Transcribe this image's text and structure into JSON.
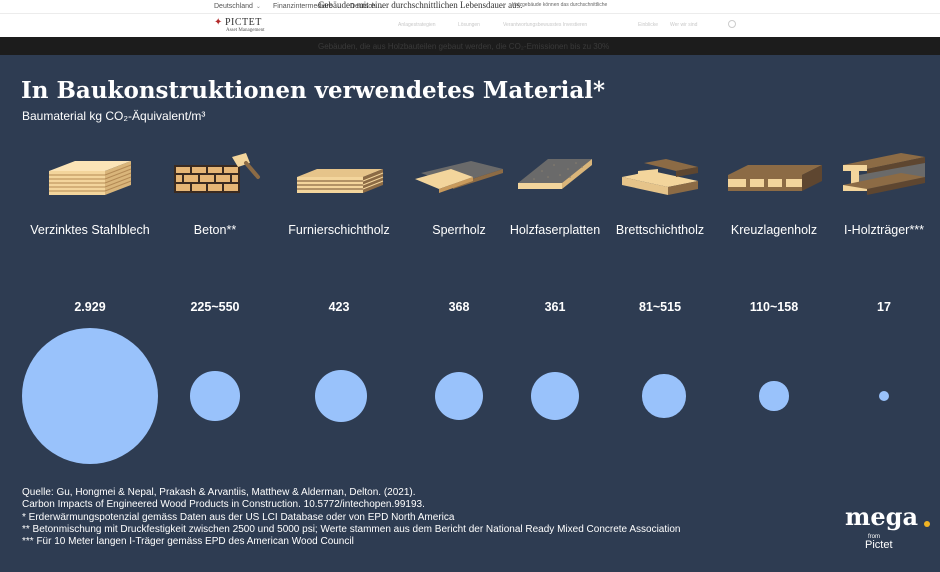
{
  "topbar": {
    "region": "Deutschland",
    "audience": "Finanzintermediäre",
    "language": "Deutsch",
    "overlay_sentence": "Gebäuden mit einer durchschnittlichen Lebensdauer aus.",
    "overlay_small": "Holzgebäude können das durchschnittliche"
  },
  "site": {
    "logo_name": "PICTET",
    "logo_sub": "Asset Management",
    "nav_items": [
      "Anlagestrategien",
      "Lösungen",
      "Verantwortungsbewusstes Investieren",
      "Einblicke",
      "Wer wir sind"
    ],
    "banner_text": "Gebäuden, die aus Holzbauteilen gebaut werden, die CO₂-Emissionen bis zu 30%"
  },
  "infographic": {
    "title": "In Baukonstruktionen verwendetes Material*",
    "subtitle": "Baumaterial kg CO₂-Äquivalent/m³",
    "sources": [
      "Quelle: Gu, Hongmei & Nepal, Prakash & Arvantiis, Matthew & Alderman, Delton. (2021).",
      "Carbon Impacts of Engineered Wood Products in Construction. 10.5772/intechopen.99193.",
      "* Erderwärmungspotenzial gemäss Daten aus der US LCI Database oder von EPD North America",
      "** Betonmischung mit Druckfestigkeit zwischen 2500 und 5000 psi; Werte stammen aus dem Bericht der National Ready Mixed Concrete Association",
      "*** Für 10 Meter langen I-Träger gemäss EPD des American Wood Council"
    ],
    "brand": {
      "name": "mega",
      "from": "from",
      "company": "Pictet",
      "dot_color": "#f0b323"
    }
  },
  "colors": {
    "background": "#2e3c52",
    "bubble": "#99c2fb",
    "wood_light": "#f3d59c",
    "wood_dark": "#8c6b45",
    "grey_board": "#6a6a6a"
  },
  "chart_data": {
    "type": "bubble",
    "title": "In Baukonstruktionen verwendetes Material*",
    "subtitle": "Baumaterial kg CO₂-Äquivalent/m³",
    "categories": [
      "Verzinktes Stahlblech",
      "Beton**",
      "Furnierschichtholz",
      "Sperrholz",
      "Holzfaserplatten",
      "Brettschichtholz",
      "Kreuzlagenholz",
      "I-Holzträger***"
    ],
    "labels": [
      "2.929",
      "225~550",
      "423",
      "368",
      "361",
      "81~515",
      "110~158",
      "17"
    ],
    "values": [
      2929,
      387.5,
      423,
      368,
      361,
      298,
      134,
      17
    ],
    "icons": [
      "steel-sheet-stack-icon",
      "brick-trowel-icon",
      "veneer-stack-icon",
      "plywood-icon",
      "fiberboard-icon",
      "glulam-icon",
      "clt-panel-icon",
      "i-joist-icon"
    ]
  }
}
